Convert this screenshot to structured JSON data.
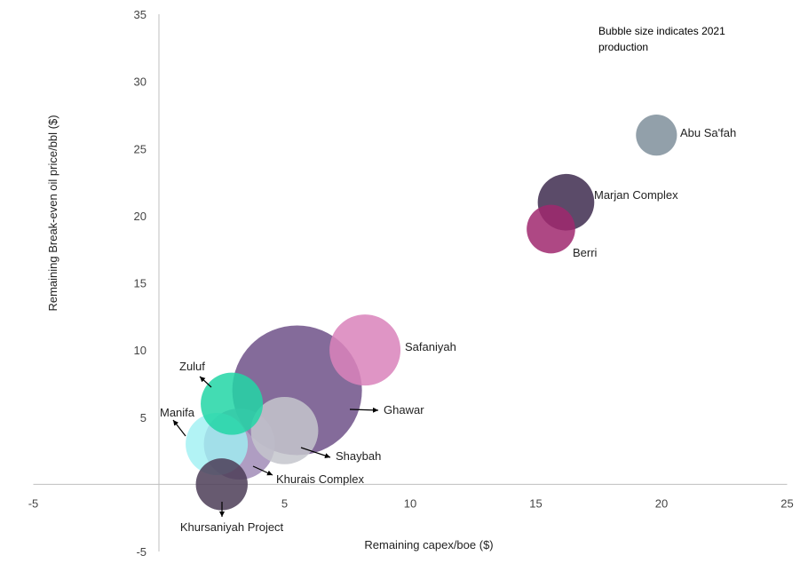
{
  "chart_data": {
    "type": "scatter",
    "subtype": "bubble",
    "title": "",
    "xlabel": "Remaining capex/boe ($)",
    "ylabel": "Remaining Break-even oil price/bbl ($)",
    "xlim": [
      -5,
      25
    ],
    "ylim": [
      -5,
      35
    ],
    "x_ticks": [
      "-5",
      "5",
      "10",
      "15",
      "20",
      "25"
    ],
    "y_ticks": [
      "-5",
      "5",
      "10",
      "15",
      "20",
      "25",
      "30",
      "35"
    ],
    "grid": false,
    "note_lines": [
      "Bubble size indicates 2021",
      "production"
    ],
    "points": [
      {
        "name": "Ghawar",
        "x": 5.5,
        "y": 7,
        "size": 1,
        "color": "#5b3a78",
        "opacity": 0.75
      },
      {
        "name": "Safaniyah",
        "x": 8.2,
        "y": 10,
        "size": 0.3,
        "color": "#d982bb",
        "opacity": 0.85
      },
      {
        "name": "Shaybah",
        "x": 5.0,
        "y": 4,
        "size": 0.27,
        "color": "#c4c5cc",
        "opacity": 0.85
      },
      {
        "name": "Khurais Complex",
        "x": 3.2,
        "y": 3,
        "size": 0.3,
        "color": "#9b84b3",
        "opacity": 0.8
      },
      {
        "name": "Manifa",
        "x": 2.3,
        "y": 3,
        "size": 0.23,
        "color": "#9ff0f2",
        "opacity": 0.8
      },
      {
        "name": "Zuluf",
        "x": 2.9,
        "y": 6,
        "size": 0.23,
        "color": "#22d6a6",
        "opacity": 0.85
      },
      {
        "name": "Khursaniyah Project",
        "x": 2.5,
        "y": 0,
        "size": 0.16,
        "color": "#4c3d57",
        "opacity": 0.85
      },
      {
        "name": "Berri",
        "x": 15.6,
        "y": 19,
        "size": 0.14,
        "color": "#a0286e",
        "opacity": 0.85
      },
      {
        "name": "Marjan Complex",
        "x": 16.2,
        "y": 21,
        "size": 0.19,
        "color": "#3e2b4f",
        "opacity": 0.85
      },
      {
        "name": "Abu Sa'fah",
        "x": 19.8,
        "y": 26,
        "size": 0.1,
        "color": "#7f8f9b",
        "opacity": 0.85
      }
    ]
  }
}
